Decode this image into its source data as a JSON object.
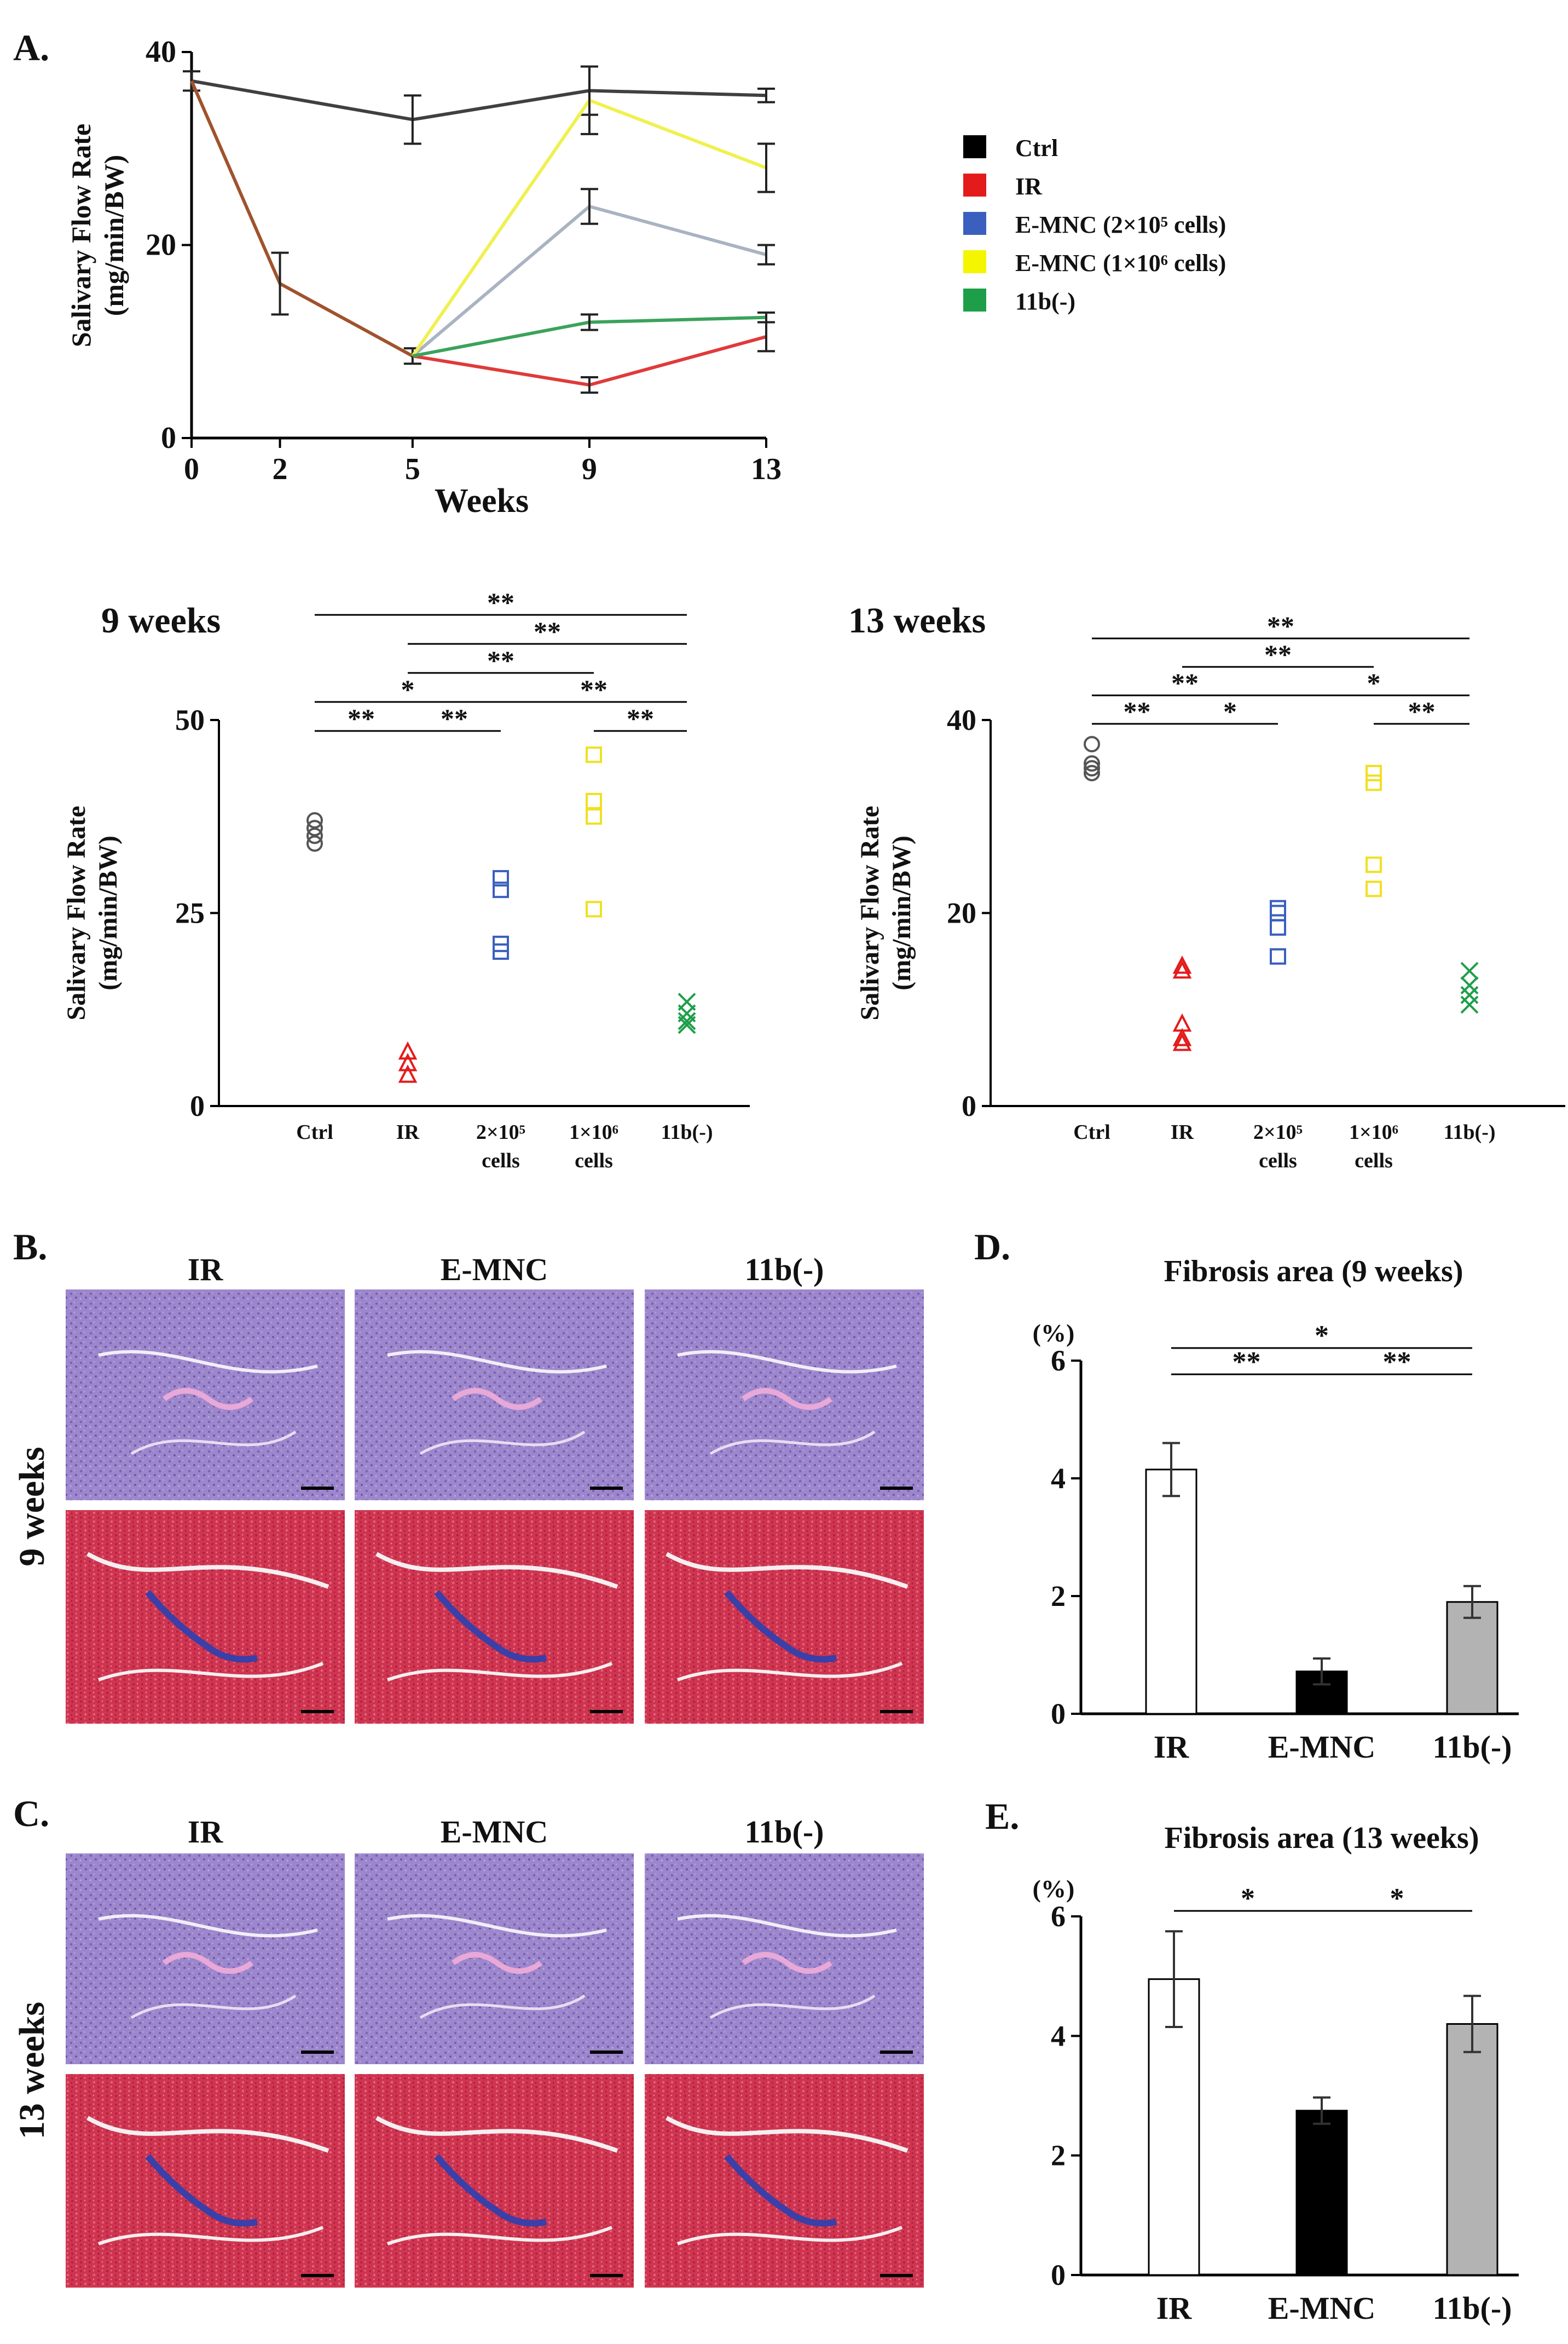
{
  "panels": {
    "a": "A.",
    "b": "B.",
    "c": "C.",
    "d": "D.",
    "e": "E."
  },
  "chart_data": [
    {
      "id": "A",
      "type": "line",
      "xlabel": "Weeks",
      "ylabel_line1": "Salivary Flow Rate",
      "ylabel_line2": "(mg/min/BW)",
      "x": [
        0,
        2,
        5,
        9,
        13
      ],
      "xticks": [
        0,
        2,
        5,
        9,
        13
      ],
      "yticks": [
        0,
        20,
        40
      ],
      "ylim": [
        0,
        40
      ],
      "legend_position": "right",
      "series": [
        {
          "name": "Ctrl",
          "color": "#404040",
          "legend_color": "#000000",
          "points": [
            [
              0,
              37
            ],
            [
              5,
              33
            ],
            [
              9,
              36
            ],
            [
              13,
              35.5
            ]
          ],
          "err": [
            [
              0,
              1
            ],
            [
              5,
              2.5
            ],
            [
              9,
              2.5
            ],
            [
              13,
              0.7
            ]
          ]
        },
        {
          "name": "IR",
          "color": "#e03a3a",
          "legend_color": "#e41b1b",
          "points": [
            [
              0,
              37
            ],
            [
              2,
              16
            ],
            [
              5,
              8.5
            ],
            [
              9,
              5.5
            ],
            [
              13,
              10.5
            ]
          ],
          "err": [
            [
              2,
              3.2
            ],
            [
              5,
              0.8
            ],
            [
              9,
              0.8
            ],
            [
              13,
              1.5
            ]
          ]
        },
        {
          "name": "E-MNC (2×10⁵ cells)",
          "color": "#a9b3c2",
          "legend_color": "#3a5fbf",
          "points": [
            [
              5,
              8.5
            ],
            [
              9,
              24
            ],
            [
              13,
              19
            ]
          ],
          "err": [
            [
              9,
              1.8
            ],
            [
              13,
              1
            ]
          ]
        },
        {
          "name": "E-MNC (1×10⁶ cells)",
          "color": "#f0f050",
          "legend_color": "#f5f500",
          "points": [
            [
              5,
              8.5
            ],
            [
              9,
              35
            ],
            [
              13,
              28
            ]
          ],
          "err": [
            [
              9,
              3.5
            ],
            [
              13,
              2.5
            ]
          ]
        },
        {
          "name": "11b(-)",
          "color": "#3aa35a",
          "legend_color": "#1f9e4a",
          "points": [
            [
              5,
              8.5
            ],
            [
              9,
              12
            ],
            [
              13,
              12.5
            ]
          ],
          "err": [
            [
              9,
              0.8
            ],
            [
              13,
              0.5
            ]
          ]
        }
      ],
      "ir_early_color": "#a0522d"
    },
    {
      "id": "A-9w",
      "type": "scatter",
      "title": "9 weeks",
      "ylabel_line1": "Salivary Flow Rate",
      "ylabel_line2": "(mg/min/BW)",
      "ylim": [
        0,
        50
      ],
      "yticks": [
        0,
        25,
        50
      ],
      "categories": [
        "Ctrl",
        "IR",
        "2×10⁵",
        "1×10⁶",
        "11b(-)"
      ],
      "categories_sub": [
        "",
        "",
        "cells",
        "cells",
        ""
      ],
      "groups": [
        {
          "marker": "circle",
          "color": "#555555",
          "values": [
            37,
            36,
            35,
            34
          ]
        },
        {
          "marker": "triangle",
          "color": "#e41b1b",
          "values": [
            7,
            5.5,
            4
          ]
        },
        {
          "marker": "square",
          "color": "#3a5fbf",
          "values": [
            29.5,
            28,
            21,
            20
          ]
        },
        {
          "marker": "square",
          "color": "#f0e020",
          "values": [
            45.5,
            39.5,
            37.5,
            25.5
          ]
        },
        {
          "marker": "cross",
          "color": "#1f9e4a",
          "values": [
            13.5,
            12,
            11,
            10.5
          ]
        }
      ],
      "brackets": [
        {
          "from": 0,
          "to": 1,
          "label": "**",
          "level": 0
        },
        {
          "from": 1,
          "to": 2,
          "label": "**",
          "level": 0
        },
        {
          "from": 3,
          "to": 4,
          "label": "**",
          "level": 0
        },
        {
          "from": 0,
          "to": 2,
          "label": "*",
          "level": 1
        },
        {
          "from": 2,
          "to": 4,
          "label": "**",
          "level": 1
        },
        {
          "from": 1,
          "to": 3,
          "label": "**",
          "level": 2
        },
        {
          "from": 1,
          "to": 4,
          "label": "**",
          "level": 3
        },
        {
          "from": 0,
          "to": 4,
          "label": "**",
          "level": 4
        }
      ]
    },
    {
      "id": "A-13w",
      "type": "scatter",
      "title": "13 weeks",
      "ylabel_line1": "Salivary Flow Rate",
      "ylabel_line2": "(mg/min/BW)",
      "ylim": [
        0,
        40
      ],
      "yticks": [
        0,
        20,
        40
      ],
      "categories": [
        "Ctrl",
        "IR",
        "2×10⁵",
        "1×10⁶",
        "11b(-)"
      ],
      "categories_sub": [
        "",
        "",
        "cells",
        "cells",
        ""
      ],
      "groups": [
        {
          "marker": "circle",
          "color": "#555555",
          "values": [
            37.5,
            35.5,
            35,
            34.5
          ]
        },
        {
          "marker": "triangle",
          "color": "#e41b1b",
          "values": [
            14.5,
            14,
            8.5,
            7,
            6.5
          ]
        },
        {
          "marker": "square",
          "color": "#3a5fbf",
          "values": [
            20.5,
            20,
            18.5,
            15.5
          ]
        },
        {
          "marker": "square",
          "color": "#f0e020",
          "values": [
            34.5,
            33.5,
            25,
            22.5
          ]
        },
        {
          "marker": "cross",
          "color": "#1f9e4a",
          "values": [
            14,
            12.5,
            11.5,
            10.5
          ]
        }
      ],
      "brackets": [
        {
          "from": 0,
          "to": 1,
          "label": "**",
          "level": 0
        },
        {
          "from": 1,
          "to": 2,
          "label": "*",
          "level": 0
        },
        {
          "from": 3,
          "to": 4,
          "label": "**",
          "level": 0
        },
        {
          "from": 0,
          "to": 2,
          "label": "**",
          "level": 1
        },
        {
          "from": 2,
          "to": 4,
          "label": "*",
          "level": 1
        },
        {
          "from": 1,
          "to": 3,
          "label": "**",
          "level": 2
        },
        {
          "from": 0,
          "to": 4,
          "label": "**",
          "level": 3
        }
      ]
    },
    {
      "id": "D",
      "type": "bar",
      "title": "Fibrosis area (9 weeks)",
      "unit": "(%)",
      "categories": [
        "IR",
        "E-MNC",
        "11b(-)"
      ],
      "values": [
        4.15,
        0.72,
        1.9
      ],
      "errors": [
        0.45,
        0.22,
        0.27
      ],
      "colors": [
        "#ffffff",
        "#000000",
        "#b3b3b3"
      ],
      "ylim": [
        0,
        6
      ],
      "yticks": [
        0,
        2,
        4,
        6
      ],
      "brackets": [
        {
          "from": 0,
          "to": 1,
          "label": "**",
          "level": 0
        },
        {
          "from": 1,
          "to": 2,
          "label": "**",
          "level": 0
        },
        {
          "from": 0,
          "to": 2,
          "label": "*",
          "level": 1
        }
      ]
    },
    {
      "id": "E",
      "type": "bar",
      "title": "Fibrosis area (13 weeks)",
      "unit": "(%)",
      "categories": [
        "IR",
        "E-MNC",
        "11b(-)"
      ],
      "values": [
        4.95,
        2.75,
        4.2
      ],
      "errors": [
        0.8,
        0.22,
        0.47
      ],
      "colors": [
        "#ffffff",
        "#000000",
        "#b3b3b3"
      ],
      "ylim": [
        0,
        6
      ],
      "yticks": [
        0,
        2,
        4,
        6
      ],
      "brackets": [
        {
          "from": 0,
          "to": 1,
          "label": "*",
          "level": 0
        },
        {
          "from": 1,
          "to": 2,
          "label": "*",
          "level": 0
        }
      ]
    }
  ],
  "histology": {
    "columns": [
      "IR",
      "E-MNC",
      "11b(-)"
    ],
    "rows": [
      "9 weeks",
      "13 weeks"
    ],
    "he_color": "#a98fd0",
    "mt_color": "#d23a55"
  }
}
